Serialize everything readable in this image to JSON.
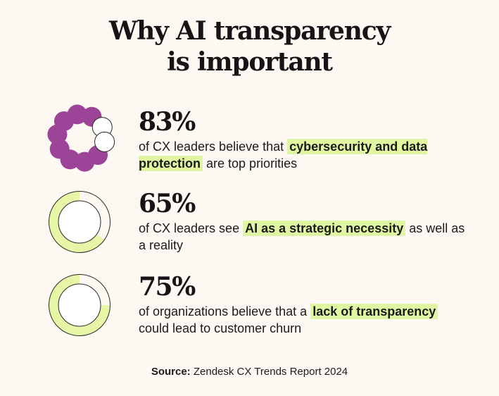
{
  "title": {
    "line1": "Why AI transparency",
    "line2": "is important"
  },
  "colors": {
    "background": "#fdf8f1",
    "purple": "#9c4497",
    "lime": "#e6f6a6",
    "highlight": "#dff7a3"
  },
  "chart_data": [
    {
      "type": "pie",
      "values": [
        83,
        17
      ],
      "icon": "circle-of-dots",
      "value_label": "83%",
      "text_before": "of CX leaders believe that",
      "highlight": "cybersecurity and data protection",
      "text_after": "are top priorities"
    },
    {
      "type": "pie",
      "values": [
        65,
        35
      ],
      "icon": "donut-ring",
      "value_label": "65%",
      "text_before": "of CX leaders see",
      "highlight": "AI as a strategic necessity",
      "text_after": "as well as a reality"
    },
    {
      "type": "pie",
      "values": [
        75,
        25
      ],
      "icon": "donut-ring",
      "value_label": "75%",
      "text_before": "of organizations believe that a",
      "highlight": "lack of transparency",
      "text_after": "could lead to customer churn"
    }
  ],
  "source": {
    "label": "Source:",
    "text": "Zendesk CX Trends Report 2024"
  }
}
